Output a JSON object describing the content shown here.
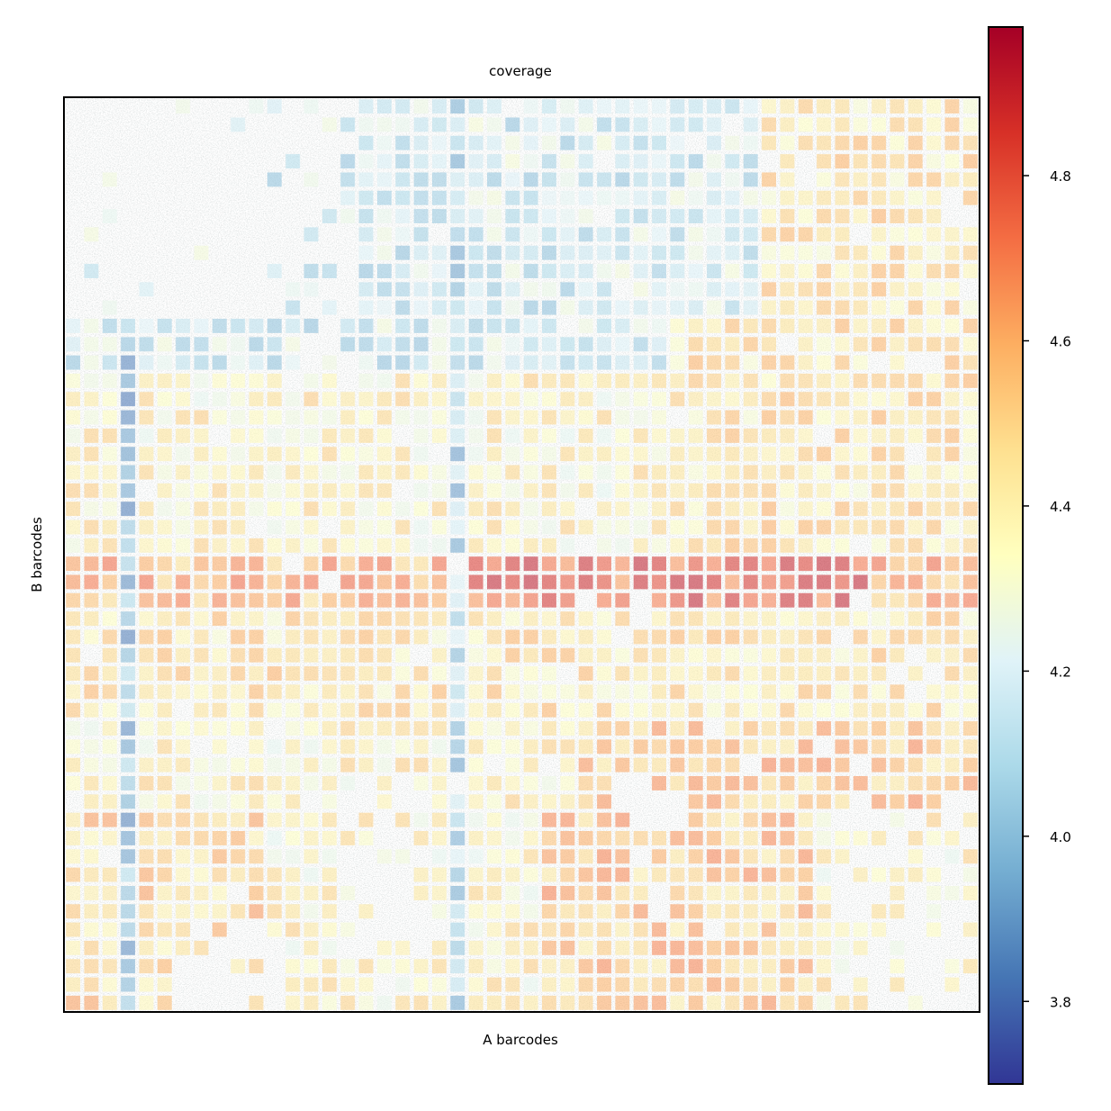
{
  "chart_data": {
    "type": "heatmap",
    "title": "coverage",
    "xlabel": "A barcodes",
    "ylabel": "B barcodes",
    "grid_shape": [
      50,
      50
    ],
    "colormap": "RdYlBu_r",
    "color_range": [
      3.7,
      4.98
    ],
    "colorbar_ticks": [
      "3.8",
      "4.0",
      "4.2",
      "4.4",
      "4.6",
      "4.8"
    ],
    "colorbar_tick_values": [
      3.8,
      4.0,
      4.2,
      4.4,
      4.6,
      4.8
    ],
    "x_ticks_shown": false,
    "y_ticks_shown": false,
    "background": "tissue image (grey/white) beneath semi-transparent tiles"
  },
  "colors": {
    "low": "#313695",
    "mid": "#ffffbf",
    "high": "#a50026"
  }
}
